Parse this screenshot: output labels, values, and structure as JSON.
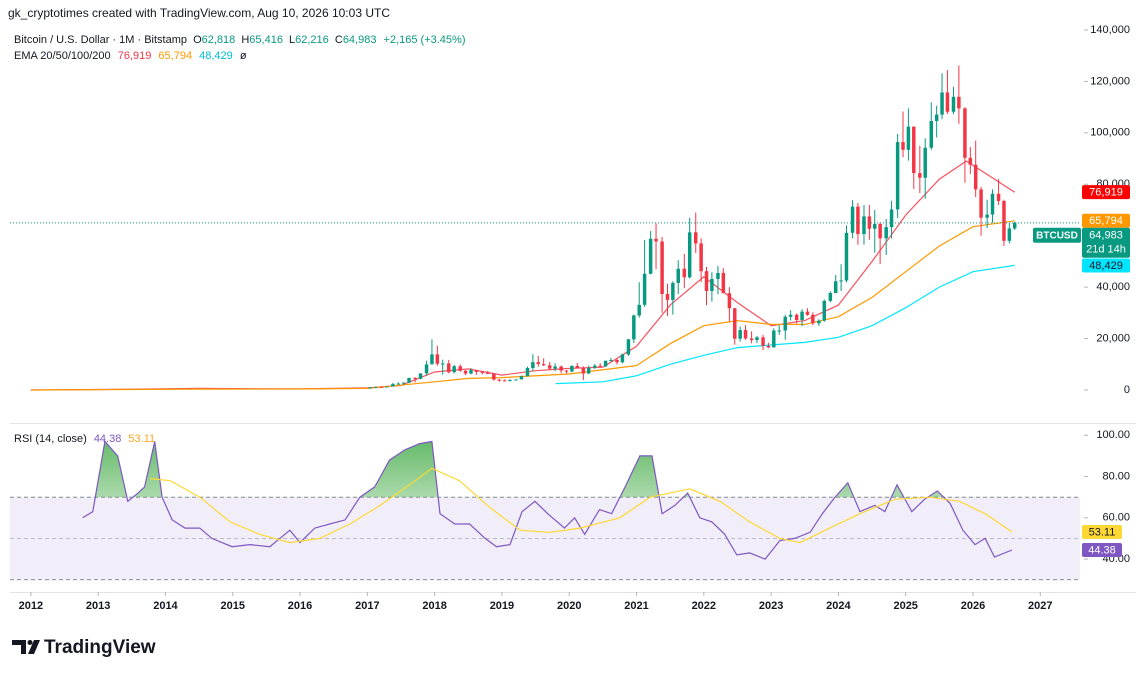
{
  "header": {
    "attribution": "gk_cryptotimes created with TradingView.com, Aug 10, 2026 10:03 UTC"
  },
  "footer": {
    "logo": "TradingView"
  },
  "chart_data": [
    {
      "type": "candlestick",
      "title": "Bitcoin / U.S. Dollar · 1M · Bitstamp",
      "legend": [
        {
          "k": "O",
          "v": "62,818"
        },
        {
          "k": "H",
          "v": "65,416"
        },
        {
          "k": "L",
          "v": "62,216"
        },
        {
          "k": "C",
          "v": "64,983"
        }
      ],
      "change": "+2,165 (+3.45%)",
      "indicator": "EMA 20/50/100/200",
      "indicator_na": "ø",
      "symbol": "BTCUSD",
      "last_label": "64,983",
      "countdown": "21d 14h",
      "up_color": "#089981",
      "down_color": "#f23645",
      "xlim": [
        2011.69,
        2027.59
      ],
      "xticks": [
        2012,
        2013,
        2014,
        2015,
        2016,
        2017,
        2018,
        2019,
        2020,
        2021,
        2022,
        2023,
        2024,
        2025,
        2026,
        2027
      ],
      "ylim": [
        -12450,
        143100
      ],
      "yticks": [
        0,
        {
          "value": 20000,
          "label": "20,000"
        },
        {
          "value": 40000,
          "label": "40,000"
        },
        {
          "value": 60000,
          "label": "60,000"
        },
        {
          "value": 80000,
          "label": "80,000"
        },
        {
          "value": 100000,
          "label": "100,000"
        },
        {
          "value": 120000,
          "label": "120,000"
        },
        {
          "value": 140000,
          "label": "140,000"
        }
      ],
      "x": [
        2017.04,
        2017.12,
        2017.21,
        2017.29,
        2017.38,
        2017.46,
        2017.54,
        2017.62,
        2017.71,
        2017.79,
        2017.88,
        2017.96,
        2018.04,
        2018.12,
        2018.21,
        2018.29,
        2018.38,
        2018.46,
        2018.54,
        2018.62,
        2018.71,
        2018.79,
        2018.88,
        2018.96,
        2019.04,
        2019.12,
        2019.21,
        2019.29,
        2019.38,
        2019.46,
        2019.54,
        2019.62,
        2019.71,
        2019.79,
        2019.88,
        2019.96,
        2020.04,
        2020.12,
        2020.21,
        2020.29,
        2020.38,
        2020.46,
        2020.54,
        2020.62,
        2020.71,
        2020.79,
        2020.88,
        2020.96,
        2021.04,
        2021.12,
        2021.21,
        2021.29,
        2021.38,
        2021.46,
        2021.54,
        2021.62,
        2021.71,
        2021.79,
        2021.88,
        2021.96,
        2022.04,
        2022.12,
        2022.21,
        2022.29,
        2022.38,
        2022.46,
        2022.54,
        2022.62,
        2022.71,
        2022.79,
        2022.88,
        2022.96,
        2023.04,
        2023.12,
        2023.21,
        2023.29,
        2023.38,
        2023.46,
        2023.54,
        2023.62,
        2023.71,
        2023.79,
        2023.88,
        2023.96,
        2024.04,
        2024.12,
        2024.21,
        2024.29,
        2024.38,
        2024.46,
        2024.54,
        2024.62,
        2024.71,
        2024.79,
        2024.88,
        2024.96,
        2025.04,
        2025.12,
        2025.21,
        2025.29,
        2025.38,
        2025.46,
        2025.54,
        2025.62,
        2025.71,
        2025.79,
        2025.88,
        2025.96,
        2026.04,
        2026.12,
        2026.21,
        2026.29,
        2026.38,
        2026.46,
        2026.54,
        2026.62
      ],
      "open": [
        963,
        965,
        1190,
        1080,
        1350,
        2300,
        2480,
        2875,
        4700,
        4340,
        6450,
        9950,
        13860,
        10220,
        10330,
        6930,
        9240,
        7490,
        6400,
        7730,
        7030,
        6630,
        6370,
        4040,
        3740,
        3460,
        3850,
        4100,
        5330,
        8560,
        10820,
        10080,
        9630,
        8300,
        9150,
        7550,
        7190,
        9350,
        8550,
        6420,
        8630,
        9450,
        9140,
        11350,
        11660,
        10780,
        13800,
        19700,
        28990,
        33110,
        45200,
        58800,
        57750,
        37330,
        35040,
        41630,
        47150,
        43830,
        61300,
        57000,
        46200,
        38480,
        43180,
        45510,
        37640,
        31790,
        19940,
        23300,
        20050,
        19420,
        20490,
        17170,
        16540,
        23130,
        23150,
        28470,
        29250,
        27210,
        30470,
        29230,
        25940,
        26970,
        34650,
        37720,
        42280,
        42580,
        61130,
        71300,
        60650,
        67500,
        62700,
        64600,
        58970,
        63330,
        70200,
        96400,
        93400,
        102400,
        84350,
        82550,
        94200,
        104600,
        107100,
        115700,
        108200,
        114000,
        109500,
        90300,
        87600,
        78000,
        67000,
        68200,
        76300,
        73500,
        58000,
        62818
      ],
      "high": [
        1150,
        1210,
        1300,
        1360,
        2760,
        3000,
        2950,
        4740,
        5000,
        6470,
        11400,
        19700,
        17200,
        11800,
        11700,
        9750,
        9960,
        7770,
        8500,
        7760,
        7410,
        7460,
        6570,
        4310,
        4070,
        4200,
        4140,
        5620,
        9080,
        13880,
        13200,
        12330,
        10900,
        10370,
        9510,
        7750,
        9580,
        10500,
        9190,
        9470,
        10070,
        10430,
        11440,
        12470,
        12050,
        14100,
        19900,
        29300,
        41900,
        58350,
        61800,
        64850,
        59500,
        41300,
        42300,
        50500,
        52900,
        67000,
        69000,
        59000,
        47900,
        45800,
        48200,
        47400,
        40000,
        31900,
        24660,
        25200,
        22800,
        21000,
        21450,
        18380,
        23950,
        25250,
        29200,
        31000,
        29800,
        31400,
        31800,
        30200,
        27490,
        35200,
        38400,
        44700,
        48900,
        64000,
        73800,
        72700,
        71900,
        71900,
        70000,
        65100,
        66500,
        73600,
        99600,
        108300,
        109500,
        102500,
        95000,
        97900,
        111900,
        110500,
        123200,
        124400,
        117900,
        126200,
        110000,
        94500,
        97000,
        79000,
        74000,
        78000,
        82000,
        74000,
        65000,
        65416
      ],
      "low": [
        750,
        920,
        890,
        1080,
        1340,
        2200,
        1840,
        2670,
        2950,
        4150,
        5500,
        10800,
        9400,
        6000,
        6430,
        6430,
        7060,
        5780,
        6070,
        5880,
        6110,
        6200,
        3650,
        3150,
        3350,
        3390,
        3840,
        4080,
        5330,
        7450,
        9080,
        9330,
        7710,
        7320,
        6520,
        6430,
        6870,
        8450,
        3860,
        6160,
        8120,
        8920,
        9020,
        11000,
        9880,
        10380,
        13250,
        18300,
        28130,
        32300,
        45000,
        47000,
        30000,
        28800,
        29300,
        37300,
        39600,
        43300,
        53300,
        42000,
        32950,
        34330,
        37200,
        37600,
        26700,
        17600,
        18800,
        19550,
        18150,
        18200,
        15480,
        16260,
        16500,
        21450,
        19570,
        27000,
        25880,
        24800,
        28860,
        25170,
        24900,
        26560,
        34100,
        37600,
        38500,
        41900,
        59000,
        56500,
        56500,
        58400,
        53400,
        49000,
        52500,
        58900,
        66800,
        90500,
        89200,
        78200,
        76600,
        74400,
        93400,
        98200,
        105300,
        107300,
        107300,
        103500,
        80600,
        84000,
        75000,
        60000,
        63000,
        65000,
        72000,
        56000,
        57000,
        62216
      ],
      "close": [
        965,
        1190,
        1080,
        1350,
        2300,
        2480,
        2875,
        4700,
        4340,
        6450,
        9950,
        13860,
        10220,
        10330,
        6930,
        9240,
        7490,
        6400,
        7730,
        7030,
        6630,
        6370,
        4040,
        3740,
        3460,
        3850,
        4100,
        5330,
        8560,
        10820,
        10080,
        9630,
        8300,
        9150,
        7550,
        7190,
        9350,
        8550,
        6420,
        8630,
        9450,
        9140,
        11350,
        11660,
        10780,
        13800,
        19700,
        28990,
        33110,
        45200,
        58800,
        57750,
        37330,
        35040,
        41630,
        47150,
        43830,
        61300,
        57000,
        46200,
        38480,
        43180,
        45510,
        37640,
        31790,
        19940,
        23300,
        20050,
        19420,
        20490,
        17170,
        16540,
        23130,
        23150,
        28470,
        29250,
        27210,
        30470,
        29230,
        25940,
        26970,
        34650,
        37720,
        42280,
        42580,
        61130,
        71300,
        60650,
        67500,
        62700,
        64600,
        58970,
        63330,
        70200,
        96400,
        93400,
        102400,
        84350,
        82550,
        94200,
        104600,
        107100,
        115700,
        108200,
        114000,
        109500,
        90300,
        87600,
        78000,
        67000,
        68200,
        76300,
        73500,
        58000,
        62818,
        64983
      ],
      "overlays": [
        {
          "color": "#f7525f",
          "tag": "76,919",
          "x": [
            2012.0,
            2013.5,
            2014.5,
            2016.0,
            2017.0,
            2017.5,
            2018.0,
            2018.5,
            2019.0,
            2019.5,
            2020.0,
            2020.5,
            2021.0,
            2021.5,
            2022.0,
            2022.5,
            2023.0,
            2023.5,
            2024.0,
            2024.5,
            2025.0,
            2025.5,
            2025.9,
            2026.2,
            2026.62
          ],
          "values": [
            10,
            300,
            600,
            420,
            800,
            1800,
            7000,
            8200,
            5800,
            7500,
            8400,
            8900,
            17000,
            33000,
            44000,
            34000,
            25000,
            27000,
            33000,
            50000,
            68000,
            82000,
            89000,
            84000,
            76919
          ]
        },
        {
          "color": "#ff9800",
          "tag": "65,794",
          "x": [
            2012.0,
            2014.5,
            2016.0,
            2017.0,
            2018.0,
            2018.5,
            2019.0,
            2020.0,
            2021.0,
            2021.5,
            2022.0,
            2022.5,
            2023.0,
            2023.5,
            2024.0,
            2024.5,
            2025.0,
            2025.5,
            2026.0,
            2026.62
          ],
          "values": [
            10,
            350,
            380,
            600,
            3200,
            4500,
            4800,
            6200,
            9500,
            18000,
            25000,
            27000,
            25500,
            25500,
            28500,
            36000,
            46000,
            56000,
            63500,
            65794
          ]
        },
        {
          "color": "#00e5ff",
          "tag": "48,429",
          "x": [
            2019.8,
            2020.5,
            2021.0,
            2021.5,
            2022.0,
            2022.5,
            2023.0,
            2023.5,
            2024.0,
            2024.5,
            2025.0,
            2025.5,
            2026.0,
            2026.62
          ],
          "values": [
            2500,
            3200,
            5500,
            10000,
            13500,
            16500,
            17500,
            18500,
            20500,
            25000,
            32000,
            40000,
            46000,
            48429
          ]
        }
      ]
    },
    {
      "type": "line",
      "title": "RSI (14, close)",
      "ylim": [
        25,
        105
      ],
      "yticks": [
        {
          "value": 40,
          "label": "40.00"
        },
        {
          "value": 60,
          "label": "60.00"
        },
        {
          "value": 80,
          "label": "80.00"
        },
        {
          "value": 100,
          "label": "100.00"
        }
      ],
      "band": [
        30,
        70
      ],
      "midline": 50,
      "overbought_color": "#4caf50",
      "band_color": "#7e57c2",
      "series": [
        {
          "color": "#7e57c2",
          "tag": "44.38",
          "x": [
            2012.77,
            2012.92,
            2013.1,
            2013.29,
            2013.44,
            2013.59,
            2013.69,
            2013.84,
            2013.95,
            2014.1,
            2014.29,
            2014.51,
            2014.69,
            2014.99,
            2015.25,
            2015.55,
            2015.85,
            2016.0,
            2016.22,
            2016.44,
            2016.67,
            2016.89,
            2017.11,
            2017.33,
            2017.56,
            2017.78,
            2017.96,
            2018.08,
            2018.3,
            2018.52,
            2018.75,
            2018.92,
            2019.12,
            2019.3,
            2019.49,
            2019.68,
            2019.93,
            2020.08,
            2020.23,
            2020.45,
            2020.63,
            2020.83,
            2021.05,
            2021.23,
            2021.38,
            2021.57,
            2021.76,
            2021.94,
            2022.12,
            2022.31,
            2022.49,
            2022.68,
            2022.91,
            2023.13,
            2023.35,
            2023.58,
            2023.76,
            2023.95,
            2024.14,
            2024.32,
            2024.54,
            2024.69,
            2024.87,
            2025.09,
            2025.28,
            2025.47,
            2025.66,
            2025.85,
            2026.03,
            2026.18,
            2026.32,
            2026.58
          ],
          "values": [
            60,
            63,
            97,
            90,
            68,
            72,
            75,
            97,
            70,
            59,
            55,
            55,
            50,
            46,
            47,
            46,
            54,
            48,
            55,
            57,
            59,
            70,
            75,
            88,
            93,
            96,
            97,
            62,
            57,
            57,
            50,
            46,
            47,
            63,
            68,
            62,
            55,
            60,
            52,
            64,
            62,
            75,
            90,
            90,
            62,
            66,
            72,
            60,
            58,
            52,
            42,
            43,
            40,
            49,
            50,
            53,
            62,
            70,
            77,
            63,
            66,
            63,
            76,
            63,
            69,
            73,
            67,
            54,
            47,
            50,
            41,
            44.38
          ]
        },
        {
          "color": "#fdd835",
          "tag": "53.11",
          "x": [
            2013.77,
            2014.07,
            2014.51,
            2014.96,
            2015.4,
            2015.85,
            2016.29,
            2016.74,
            2017.19,
            2017.63,
            2017.96,
            2018.37,
            2018.82,
            2019.27,
            2019.71,
            2020.16,
            2020.75,
            2021.2,
            2021.79,
            2022.24,
            2022.68,
            2023.13,
            2023.43,
            2023.87,
            2024.32,
            2024.84,
            2025.36,
            2025.8,
            2026.18,
            2026.58
          ],
          "values": [
            79,
            78,
            70,
            58,
            52,
            48,
            50,
            57,
            66,
            76,
            84,
            78,
            65,
            54,
            53,
            55,
            60,
            70,
            74,
            68,
            58,
            50,
            48,
            55,
            62,
            69,
            70,
            68,
            62,
            53.11
          ]
        }
      ]
    }
  ]
}
